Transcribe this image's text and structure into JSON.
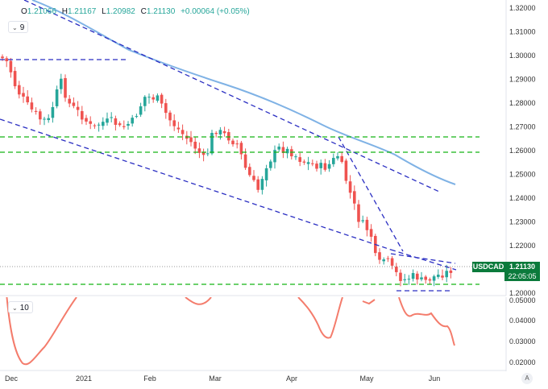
{
  "header": {
    "ohlc": {
      "open_label": "O",
      "open": "1.21066",
      "high_label": "H",
      "high": "1.21167",
      "low_label": "L",
      "low": "1.20982",
      "close_label": "C",
      "close": "1.21130",
      "change": "+0.00064 (+0.05%)"
    },
    "ma_legend": "9",
    "indicator_legend": "10"
  },
  "price_tag": {
    "symbol": "USDCAD",
    "value": "1.21130",
    "countdown": "22:05:05"
  },
  "price_axis": [
    "1.32000",
    "1.31000",
    "1.30000",
    "1.29000",
    "1.28000",
    "1.27000",
    "1.26000",
    "1.25000",
    "1.24000",
    "1.23000",
    "1.22000",
    "1.21000",
    "1.20000"
  ],
  "indicator_axis": [
    "0.05000",
    "0.04000",
    "0.03000",
    "0.02000"
  ],
  "time_axis": [
    "Dec",
    "2021",
    "Feb",
    "Mar",
    "Apr",
    "May",
    "Jun"
  ],
  "colors": {
    "up": "#26a69a",
    "down": "#ef5350",
    "ma": "#7fb2e5",
    "trend": "#2a2ec2",
    "support": "#14b514",
    "indicator": "#f47c6c",
    "tag": "#0b7a3b"
  },
  "icons": {
    "collapse": "chevron-down-icon",
    "auto_scale": "auto-scale-icon"
  },
  "auto_label": "A",
  "chart_data": {
    "type": "candlestick",
    "symbol": "USDCAD",
    "ylim": [
      1.2,
      1.32
    ],
    "indicator_ylim": [
      0.018,
      0.05
    ],
    "x_labels": [
      "Dec",
      "2021",
      "Feb",
      "Mar",
      "Apr",
      "May",
      "Jun"
    ]
  }
}
